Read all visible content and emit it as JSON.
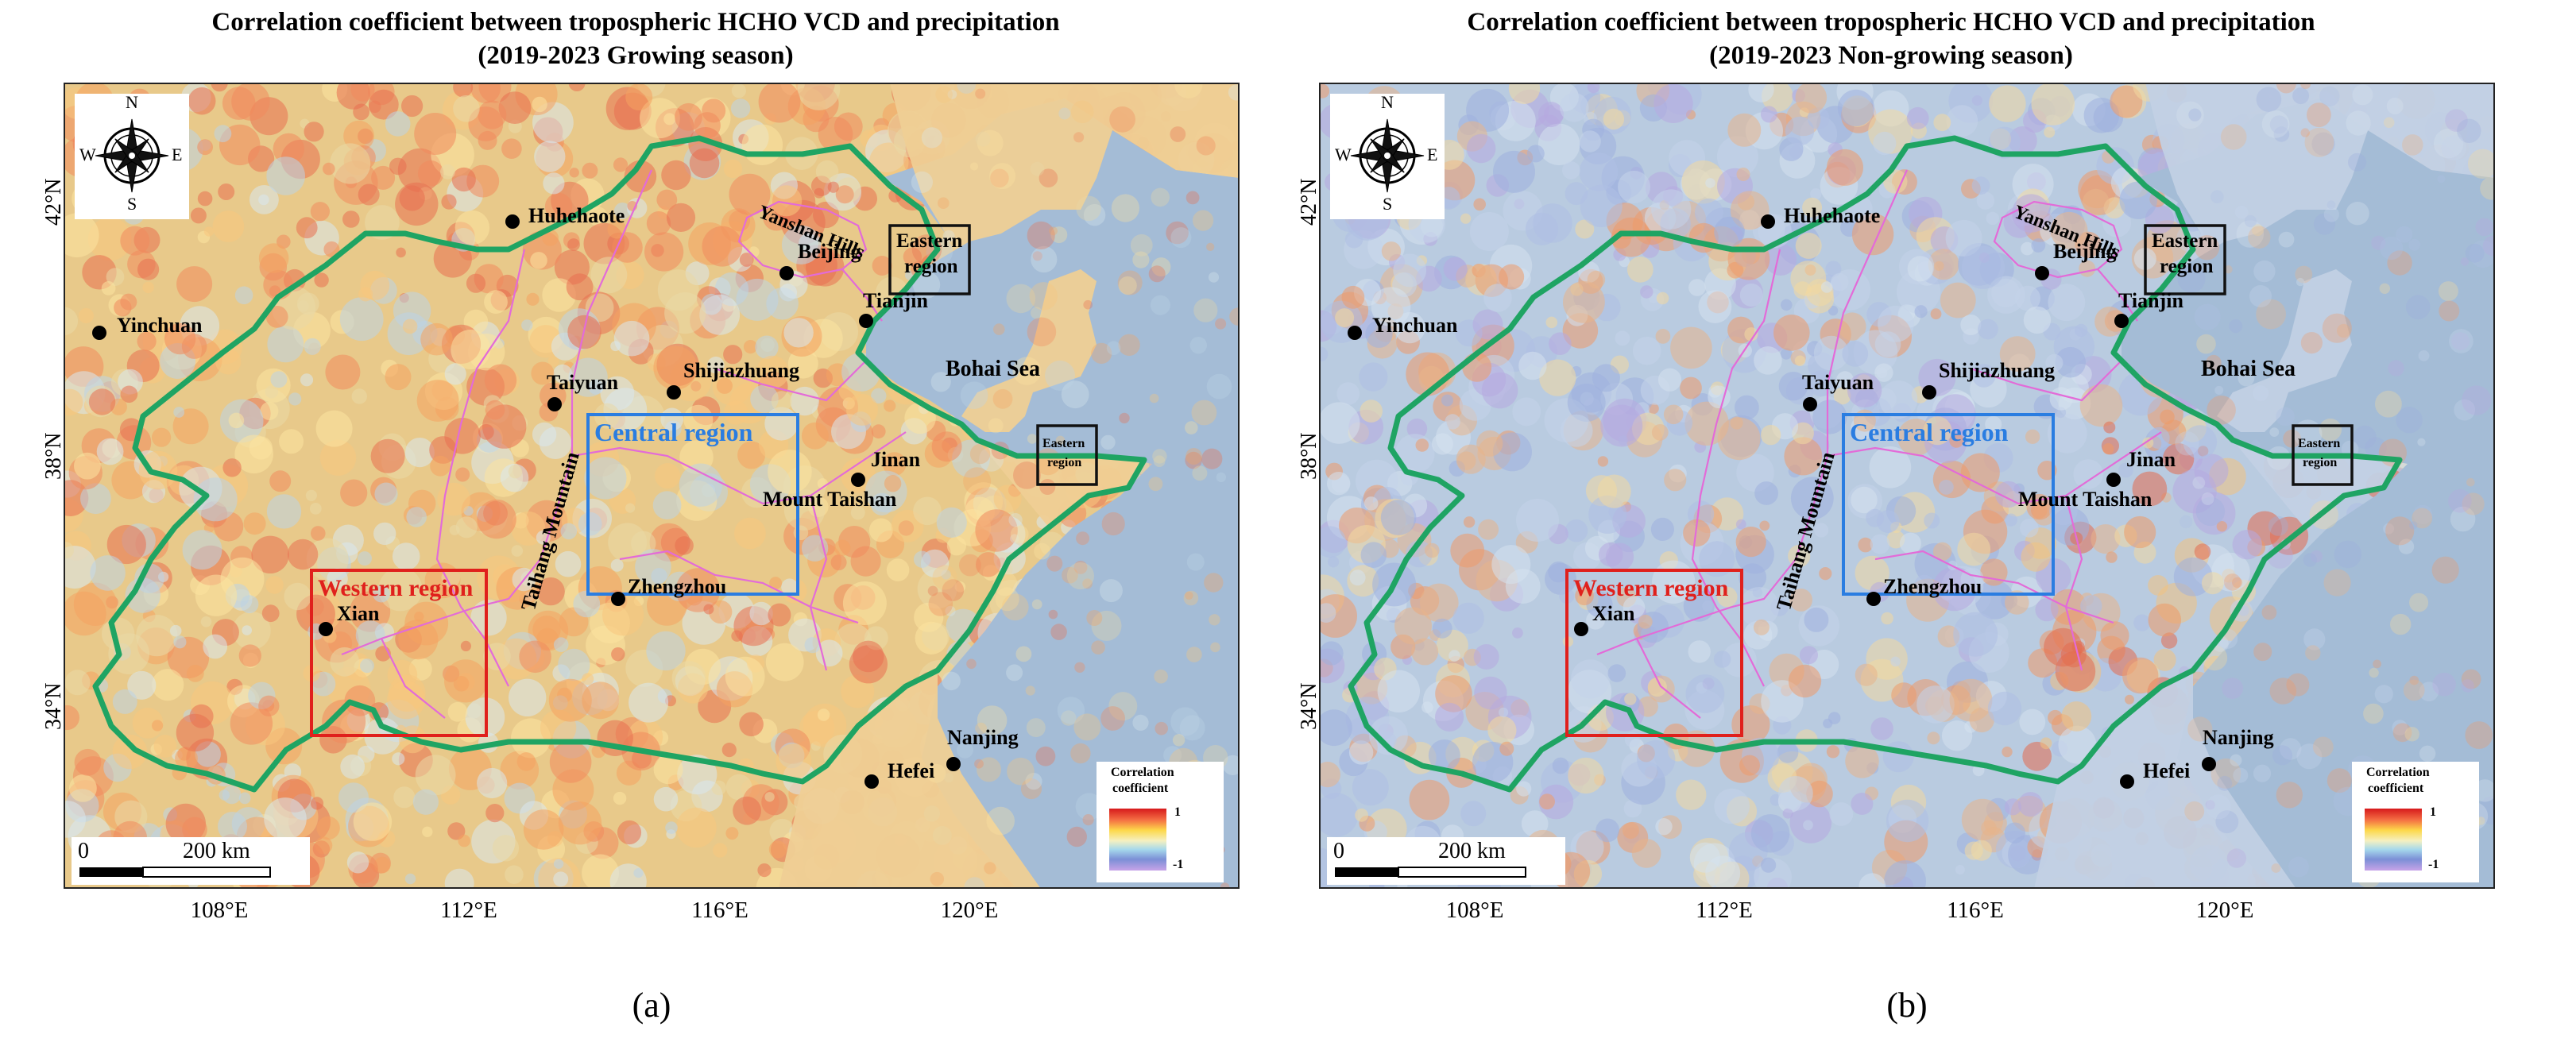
{
  "colors": {
    "boundary": "#1fa463",
    "province_line": "#e36bd8",
    "western_box": "#e0201c",
    "central_box": "#2a7de1",
    "eastern_box": "#111111",
    "sea": "#a4bcd6",
    "land_a": "#e8c98a",
    "land_b": "#b9cbe0"
  },
  "compass": {
    "n": "N",
    "s": "S",
    "e": "E",
    "w": "W"
  },
  "axes": {
    "lat_labels": [
      "42°N",
      "38°N",
      "34°N"
    ],
    "lon_labels": [
      "108°E",
      "112°E",
      "116°E",
      "120°E"
    ]
  },
  "scale_bar": {
    "zero": "0",
    "distance": "200 km"
  },
  "legend": {
    "title_line1": "Correlation",
    "title_line2": "coefficient",
    "max": "1",
    "min": "-1"
  },
  "panels": [
    {
      "title_line1": "Correlation coefficient between tropospheric HCHO VCD and precipitation",
      "title_line2": "(2019-2023 Growing season)",
      "label": "(a)",
      "season": "growing"
    },
    {
      "title_line1": "Correlation coefficient between tropospheric HCHO VCD and precipitation",
      "title_line2": "(2019-2023 Non-growing season)",
      "label": "(b)",
      "season": "non-growing"
    }
  ],
  "cities": [
    "Huhehaote",
    "Beijing",
    "Tianjin",
    "Yinchuan",
    "Taiyuan",
    "Shijiazhuang",
    "Jinan",
    "Mount Taishan",
    "Zhengzhou",
    "Xian",
    "Hefei",
    "Nanjing"
  ],
  "features": {
    "bohai_sea": "Bohai Sea",
    "yanshan_hills": "Yanshan Hills",
    "taihang_mountain": "Taihang Mountain"
  },
  "regions": {
    "western": "Western region",
    "central": "Central region",
    "eastern_line1": "Eastern",
    "eastern_line2": "region"
  }
}
